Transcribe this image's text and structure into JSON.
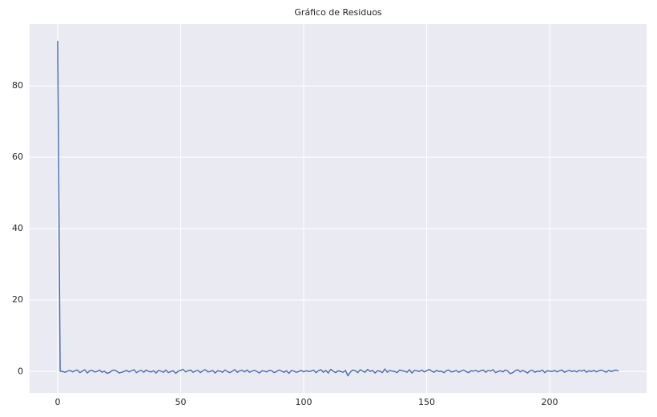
{
  "chart_data": {
    "type": "line",
    "title": "Gráfico de Residuos",
    "x": [
      0,
      1,
      2,
      3,
      4,
      5,
      6,
      7,
      8,
      9,
      10,
      11,
      12,
      13,
      14,
      15,
      16,
      17,
      18,
      19,
      20,
      21,
      22,
      23,
      24,
      25,
      26,
      27,
      28,
      29,
      30,
      31,
      32,
      33,
      34,
      35,
      36,
      37,
      38,
      39,
      40,
      41,
      42,
      43,
      44,
      45,
      46,
      47,
      48,
      49,
      50,
      51,
      52,
      53,
      54,
      55,
      56,
      57,
      58,
      59,
      60,
      61,
      62,
      63,
      64,
      65,
      66,
      67,
      68,
      69,
      70,
      71,
      72,
      73,
      74,
      75,
      76,
      77,
      78,
      79,
      80,
      81,
      82,
      83,
      84,
      85,
      86,
      87,
      88,
      89,
      90,
      91,
      92,
      93,
      94,
      95,
      96,
      97,
      98,
      99,
      100,
      101,
      102,
      103,
      104,
      105,
      106,
      107,
      108,
      109,
      110,
      111,
      112,
      113,
      114,
      115,
      116,
      117,
      118,
      119,
      120,
      121,
      122,
      123,
      124,
      125,
      126,
      127,
      128,
      129,
      130,
      131,
      132,
      133,
      134,
      135,
      136,
      137,
      138,
      139,
      140,
      141,
      142,
      143,
      144,
      145,
      146,
      147,
      148,
      149,
      150,
      151,
      152,
      153,
      154,
      155,
      156,
      157,
      158,
      159,
      160,
      161,
      162,
      163,
      164,
      165,
      166,
      167,
      168,
      169,
      170,
      171,
      172,
      173,
      174,
      175,
      176,
      177,
      178,
      179,
      180,
      181,
      182,
      183,
      184,
      185,
      186,
      187,
      188,
      189,
      190,
      191,
      192,
      193,
      194,
      195,
      196,
      197,
      198,
      199,
      200,
      201,
      202,
      203,
      204,
      205,
      206,
      207,
      208,
      209,
      210,
      211,
      212,
      213,
      214,
      215,
      216,
      217,
      218,
      219,
      220,
      221,
      222,
      223,
      224,
      225,
      226,
      227,
      228
    ],
    "series": [
      {
        "color": "#4c72b0",
        "values": [
          92.6,
          0.1,
          0.0,
          -0.2,
          0.1,
          0.3,
          -0.1,
          0.2,
          0.4,
          -0.3,
          0.1,
          0.5,
          -0.4,
          0.2,
          0.3,
          -0.1,
          0.0,
          0.4,
          -0.2,
          0.1,
          -0.5,
          -0.3,
          0.2,
          0.4,
          0.1,
          -0.4,
          -0.2,
          0.0,
          0.3,
          -0.1,
          0.2,
          0.5,
          -0.3,
          0.1,
          0.3,
          -0.2,
          0.4,
          0.0,
          -0.1,
          0.2,
          -0.4,
          0.3,
          0.1,
          -0.2,
          0.4,
          -0.3,
          0.0,
          0.2,
          -0.5,
          0.1,
          0.3,
          0.6,
          -0.1,
          0.2,
          0.4,
          -0.2,
          0.1,
          0.3,
          -0.3,
          0.2,
          0.5,
          -0.1,
          0.0,
          0.3,
          -0.4,
          0.2,
          0.1,
          -0.2,
          0.4,
          0.0,
          -0.3,
          0.1,
          0.5,
          -0.2,
          0.2,
          0.3,
          -0.1,
          0.4,
          -0.2,
          0.1,
          0.3,
          0.0,
          -0.4,
          0.2,
          0.1,
          -0.1,
          0.3,
          0.2,
          -0.3,
          0.0,
          0.4,
          0.1,
          -0.2,
          0.2,
          -0.5,
          0.3,
          0.1,
          -0.2,
          0.0,
          0.3,
          -0.1,
          0.2,
          0.0,
          0.1,
          0.4,
          -0.3,
          0.2,
          0.5,
          -0.2,
          0.3,
          -0.4,
          0.6,
          0.1,
          -0.3,
          0.2,
          0.0,
          -0.2,
          0.3,
          -1.2,
          -0.1,
          0.4,
          0.2,
          -0.3,
          0.5,
          0.1,
          -0.2,
          0.6,
          0.0,
          0.3,
          -0.4,
          0.2,
          0.1,
          -0.3,
          0.7,
          -0.2,
          0.3,
          0.1,
          0.0,
          -0.3,
          0.4,
          0.2,
          0.1,
          -0.2,
          0.5,
          -0.4,
          0.3,
          0.2,
          0.0,
          0.4,
          -0.1,
          0.2,
          0.6,
          0.1,
          -0.2,
          0.3,
          0.0,
          0.1,
          -0.3,
          0.2,
          0.4,
          -0.1,
          0.0,
          0.3,
          -0.2,
          0.1,
          0.4,
          0.0,
          -0.3,
          0.2,
          0.1,
          0.3,
          -0.1,
          0.2,
          0.4,
          -0.2,
          0.3,
          0.1,
          0.5,
          -0.3,
          0.0,
          0.2,
          -0.1,
          0.4,
          0.1,
          -0.6,
          -0.3,
          0.2,
          0.5,
          -0.1,
          0.3,
          0.0,
          -0.4,
          0.2,
          0.3,
          -0.2,
          0.1,
          0.0,
          0.4,
          -0.3,
          0.2,
          0.1,
          0.0,
          0.3,
          -0.1,
          0.2,
          0.4,
          -0.2,
          0.1,
          0.3,
          0.0,
          0.2,
          -0.1,
          0.3,
          0.1,
          0.4,
          -0.2,
          0.2,
          0.0,
          0.3,
          -0.1,
          0.2,
          0.4,
          0.1,
          -0.2,
          0.3,
          0.0,
          0.2,
          0.4,
          0.1
        ]
      }
    ],
    "xlim": [
      -11.4,
      239.4
    ],
    "xticks": [
      0,
      50,
      100,
      150,
      200
    ],
    "ylim": [
      -6,
      97.3
    ],
    "yticks": [
      0,
      20,
      40,
      60,
      80
    ],
    "grid": true
  }
}
